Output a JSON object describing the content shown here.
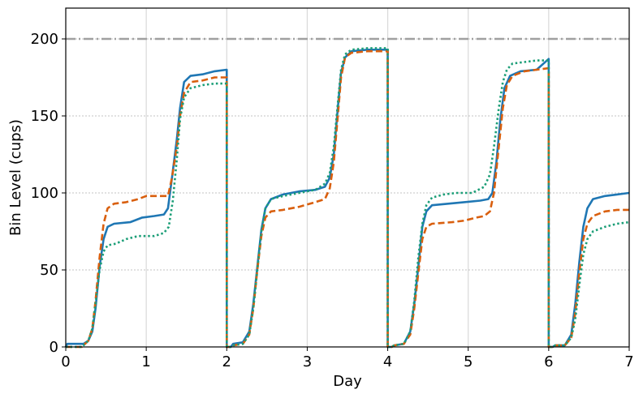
{
  "chart_data": {
    "type": "line",
    "title": "",
    "xlabel": "Day",
    "ylabel": "Bin Level (cups)",
    "xlim": [
      0,
      7
    ],
    "ylim": [
      0,
      220
    ],
    "x_ticks": [
      "0",
      "1",
      "2",
      "3",
      "4",
      "5",
      "6",
      "7"
    ],
    "y_ticks": [
      "0",
      "50",
      "100",
      "150",
      "200"
    ],
    "grid": {
      "x": true,
      "y": true
    },
    "legend": null,
    "reference_lines": [
      {
        "orientation": "horizontal",
        "y": 200,
        "style": "dashdot",
        "color": "#a0a0a0"
      }
    ],
    "series": [
      {
        "style": "solid",
        "color": "#1f77b4",
        "points": [
          [
            0.0,
            0
          ],
          [
            0.02,
            2
          ],
          [
            0.22,
            2
          ],
          [
            0.28,
            4
          ],
          [
            0.33,
            10
          ],
          [
            0.37,
            25
          ],
          [
            0.42,
            52
          ],
          [
            0.47,
            70
          ],
          [
            0.52,
            78
          ],
          [
            0.6,
            80
          ],
          [
            0.8,
            81
          ],
          [
            0.95,
            84
          ],
          [
            1.1,
            85
          ],
          [
            1.22,
            86
          ],
          [
            1.27,
            90
          ],
          [
            1.32,
            110
          ],
          [
            1.38,
            135
          ],
          [
            1.42,
            155
          ],
          [
            1.47,
            172
          ],
          [
            1.55,
            176
          ],
          [
            1.7,
            177
          ],
          [
            1.85,
            179
          ],
          [
            2.0,
            180
          ],
          [
            2.0,
            0
          ],
          [
            2.05,
            0
          ],
          [
            2.08,
            2
          ],
          [
            2.2,
            3
          ],
          [
            2.28,
            10
          ],
          [
            2.33,
            28
          ],
          [
            2.38,
            52
          ],
          [
            2.43,
            76
          ],
          [
            2.48,
            90
          ],
          [
            2.55,
            96
          ],
          [
            2.7,
            99
          ],
          [
            2.9,
            101
          ],
          [
            3.1,
            102
          ],
          [
            3.22,
            104
          ],
          [
            3.28,
            110
          ],
          [
            3.33,
            125
          ],
          [
            3.38,
            155
          ],
          [
            3.42,
            178
          ],
          [
            3.47,
            188
          ],
          [
            3.55,
            192
          ],
          [
            3.75,
            193
          ],
          [
            4.0,
            193
          ],
          [
            4.0,
            0
          ],
          [
            4.05,
            0
          ],
          [
            4.08,
            1
          ],
          [
            4.2,
            2
          ],
          [
            4.28,
            10
          ],
          [
            4.33,
            28
          ],
          [
            4.38,
            52
          ],
          [
            4.43,
            78
          ],
          [
            4.48,
            88
          ],
          [
            4.55,
            92
          ],
          [
            4.75,
            93
          ],
          [
            4.95,
            94
          ],
          [
            5.15,
            95
          ],
          [
            5.25,
            96
          ],
          [
            5.3,
            100
          ],
          [
            5.35,
            120
          ],
          [
            5.4,
            148
          ],
          [
            5.45,
            168
          ],
          [
            5.52,
            176
          ],
          [
            5.65,
            179
          ],
          [
            5.85,
            180
          ],
          [
            6.0,
            187
          ],
          [
            6.0,
            0
          ],
          [
            6.05,
            0
          ],
          [
            6.08,
            1
          ],
          [
            6.2,
            1
          ],
          [
            6.28,
            8
          ],
          [
            6.33,
            28
          ],
          [
            6.38,
            55
          ],
          [
            6.43,
            78
          ],
          [
            6.48,
            90
          ],
          [
            6.55,
            96
          ],
          [
            6.7,
            98
          ],
          [
            6.85,
            99
          ],
          [
            7.0,
            100
          ]
        ]
      },
      {
        "style": "dashed",
        "color": "#d95f0e",
        "points": [
          [
            0.0,
            0
          ],
          [
            0.02,
            0
          ],
          [
            0.2,
            0
          ],
          [
            0.28,
            4
          ],
          [
            0.33,
            12
          ],
          [
            0.37,
            30
          ],
          [
            0.42,
            58
          ],
          [
            0.47,
            80
          ],
          [
            0.52,
            90
          ],
          [
            0.6,
            93
          ],
          [
            0.75,
            94
          ],
          [
            0.9,
            96
          ],
          [
            1.0,
            98
          ],
          [
            1.1,
            98
          ],
          [
            1.27,
            98
          ],
          [
            1.32,
            110
          ],
          [
            1.38,
            130
          ],
          [
            1.42,
            150
          ],
          [
            1.47,
            165
          ],
          [
            1.55,
            172
          ],
          [
            1.7,
            173
          ],
          [
            1.85,
            175
          ],
          [
            2.0,
            175
          ],
          [
            2.0,
            0
          ],
          [
            2.05,
            0
          ],
          [
            2.08,
            1
          ],
          [
            2.2,
            2
          ],
          [
            2.28,
            8
          ],
          [
            2.33,
            25
          ],
          [
            2.38,
            50
          ],
          [
            2.43,
            72
          ],
          [
            2.48,
            84
          ],
          [
            2.55,
            88
          ],
          [
            2.7,
            89
          ],
          [
            2.9,
            91
          ],
          [
            3.1,
            94
          ],
          [
            3.22,
            96
          ],
          [
            3.28,
            103
          ],
          [
            3.33,
            120
          ],
          [
            3.38,
            150
          ],
          [
            3.42,
            175
          ],
          [
            3.47,
            188
          ],
          [
            3.55,
            191
          ],
          [
            3.75,
            192
          ],
          [
            4.0,
            192
          ],
          [
            4.0,
            0
          ],
          [
            4.05,
            0
          ],
          [
            4.08,
            1
          ],
          [
            4.2,
            2
          ],
          [
            4.28,
            8
          ],
          [
            4.33,
            25
          ],
          [
            4.38,
            48
          ],
          [
            4.43,
            70
          ],
          [
            4.48,
            78
          ],
          [
            4.55,
            80
          ],
          [
            4.8,
            81
          ],
          [
            4.95,
            82
          ],
          [
            5.1,
            84
          ],
          [
            5.2,
            85
          ],
          [
            5.27,
            88
          ],
          [
            5.32,
            100
          ],
          [
            5.38,
            130
          ],
          [
            5.43,
            155
          ],
          [
            5.48,
            170
          ],
          [
            5.55,
            176
          ],
          [
            5.7,
            179
          ],
          [
            5.85,
            180
          ],
          [
            6.0,
            181
          ],
          [
            6.0,
            0
          ],
          [
            6.05,
            0
          ],
          [
            6.08,
            1
          ],
          [
            6.2,
            1
          ],
          [
            6.28,
            6
          ],
          [
            6.33,
            22
          ],
          [
            6.38,
            48
          ],
          [
            6.43,
            70
          ],
          [
            6.48,
            80
          ],
          [
            6.55,
            85
          ],
          [
            6.7,
            88
          ],
          [
            6.85,
            89
          ],
          [
            7.0,
            89
          ]
        ]
      },
      {
        "style": "dotted",
        "color": "#1b9e77",
        "points": [
          [
            0.0,
            0
          ],
          [
            0.02,
            0
          ],
          [
            0.2,
            0
          ],
          [
            0.28,
            4
          ],
          [
            0.33,
            12
          ],
          [
            0.37,
            28
          ],
          [
            0.42,
            50
          ],
          [
            0.47,
            62
          ],
          [
            0.52,
            66
          ],
          [
            0.62,
            67
          ],
          [
            0.75,
            70
          ],
          [
            0.9,
            72
          ],
          [
            1.1,
            72
          ],
          [
            1.22,
            74
          ],
          [
            1.28,
            78
          ],
          [
            1.33,
            95
          ],
          [
            1.38,
            122
          ],
          [
            1.42,
            148
          ],
          [
            1.47,
            162
          ],
          [
            1.55,
            168
          ],
          [
            1.7,
            170
          ],
          [
            1.85,
            171
          ],
          [
            2.0,
            171
          ],
          [
            2.0,
            0
          ],
          [
            2.05,
            0
          ],
          [
            2.08,
            1
          ],
          [
            2.2,
            2
          ],
          [
            2.28,
            8
          ],
          [
            2.33,
            25
          ],
          [
            2.38,
            50
          ],
          [
            2.43,
            75
          ],
          [
            2.48,
            90
          ],
          [
            2.55,
            96
          ],
          [
            2.7,
            98
          ],
          [
            2.9,
            100
          ],
          [
            3.1,
            102
          ],
          [
            3.22,
            106
          ],
          [
            3.28,
            113
          ],
          [
            3.33,
            130
          ],
          [
            3.38,
            158
          ],
          [
            3.42,
            180
          ],
          [
            3.47,
            190
          ],
          [
            3.55,
            193
          ],
          [
            3.75,
            194
          ],
          [
            4.0,
            194
          ],
          [
            4.0,
            0
          ],
          [
            4.05,
            0
          ],
          [
            4.08,
            1
          ],
          [
            4.2,
            2
          ],
          [
            4.28,
            10
          ],
          [
            4.33,
            30
          ],
          [
            4.38,
            58
          ],
          [
            4.43,
            80
          ],
          [
            4.48,
            92
          ],
          [
            4.55,
            97
          ],
          [
            4.7,
            99
          ],
          [
            4.85,
            100
          ],
          [
            5.05,
            100
          ],
          [
            5.2,
            104
          ],
          [
            5.27,
            112
          ],
          [
            5.32,
            130
          ],
          [
            5.38,
            155
          ],
          [
            5.43,
            172
          ],
          [
            5.48,
            180
          ],
          [
            5.55,
            184
          ],
          [
            5.7,
            185
          ],
          [
            5.85,
            186
          ],
          [
            6.0,
            186
          ],
          [
            6.0,
            0
          ],
          [
            6.05,
            0
          ],
          [
            6.08,
            1
          ],
          [
            6.2,
            1
          ],
          [
            6.28,
            6
          ],
          [
            6.33,
            18
          ],
          [
            6.38,
            40
          ],
          [
            6.43,
            60
          ],
          [
            6.48,
            70
          ],
          [
            6.55,
            75
          ],
          [
            6.7,
            78
          ],
          [
            6.85,
            80
          ],
          [
            7.0,
            81
          ]
        ]
      }
    ]
  }
}
